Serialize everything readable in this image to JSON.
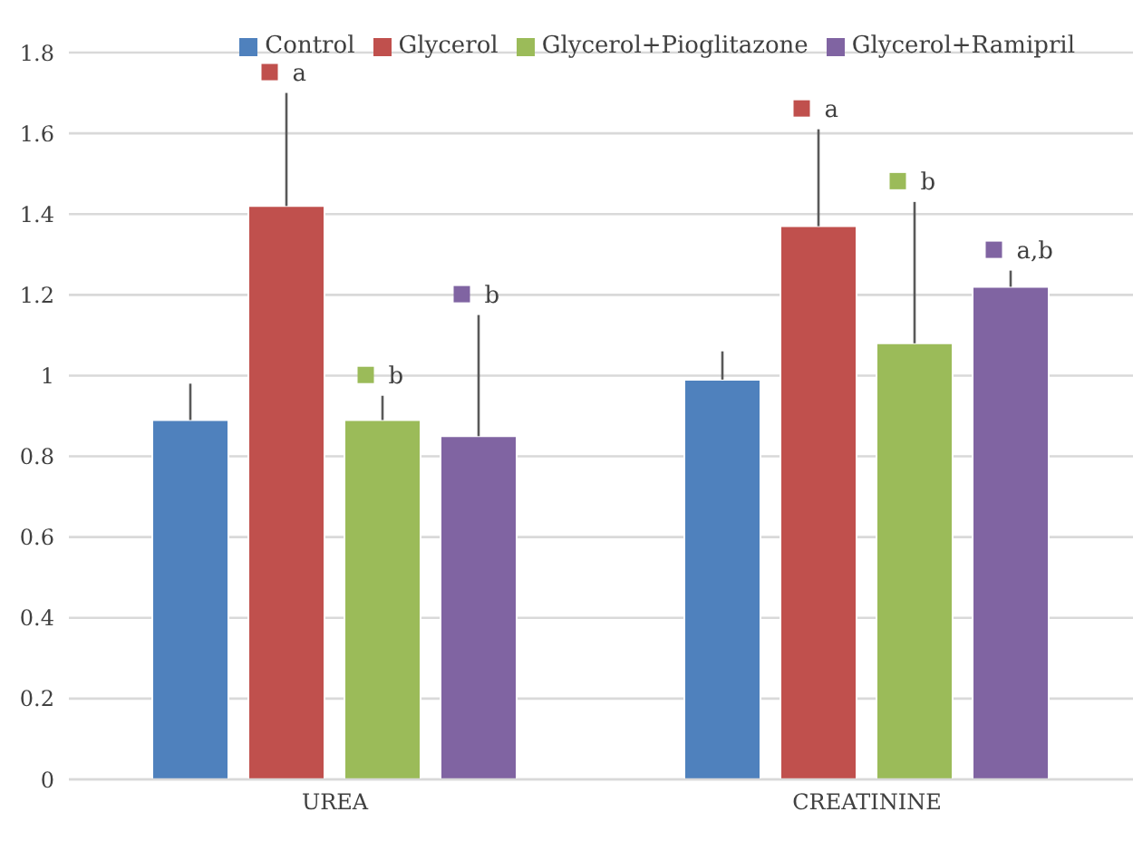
{
  "chart_data": {
    "type": "bar",
    "categories": [
      "UREA",
      "CREATININE"
    ],
    "series": [
      {
        "name": "Control",
        "color": "#4f81bd",
        "values": [
          0.89,
          0.99
        ],
        "errors": [
          [
            0.89,
            0.98
          ],
          [
            0.99,
            1.06
          ]
        ]
      },
      {
        "name": "Glycerol",
        "color": "#c0504d",
        "values": [
          1.42,
          1.37
        ],
        "errors": [
          [
            1.42,
            1.7
          ],
          [
            1.37,
            1.61
          ]
        ]
      },
      {
        "name": "Glycerol+Pioglitazone",
        "color": "#9bbb59",
        "values": [
          0.89,
          1.08
        ],
        "errors": [
          [
            0.89,
            0.95
          ],
          [
            1.08,
            1.43
          ]
        ]
      },
      {
        "name": "Glycerol+Ramipril",
        "color": "#8064a2",
        "values": [
          0.85,
          1.22
        ],
        "errors": [
          [
            0.85,
            1.15
          ],
          [
            1.22,
            1.26
          ]
        ]
      }
    ],
    "annotations": [
      "a",
      "b",
      "b",
      "a",
      "b",
      "a,b"
    ],
    "ylim": [
      0,
      1.8
    ],
    "yticks": [
      0,
      0.2,
      0.4,
      0.6,
      0.8,
      1,
      1.2,
      1.4,
      1.6,
      1.8
    ],
    "grid": "y",
    "legend": "top right"
  }
}
